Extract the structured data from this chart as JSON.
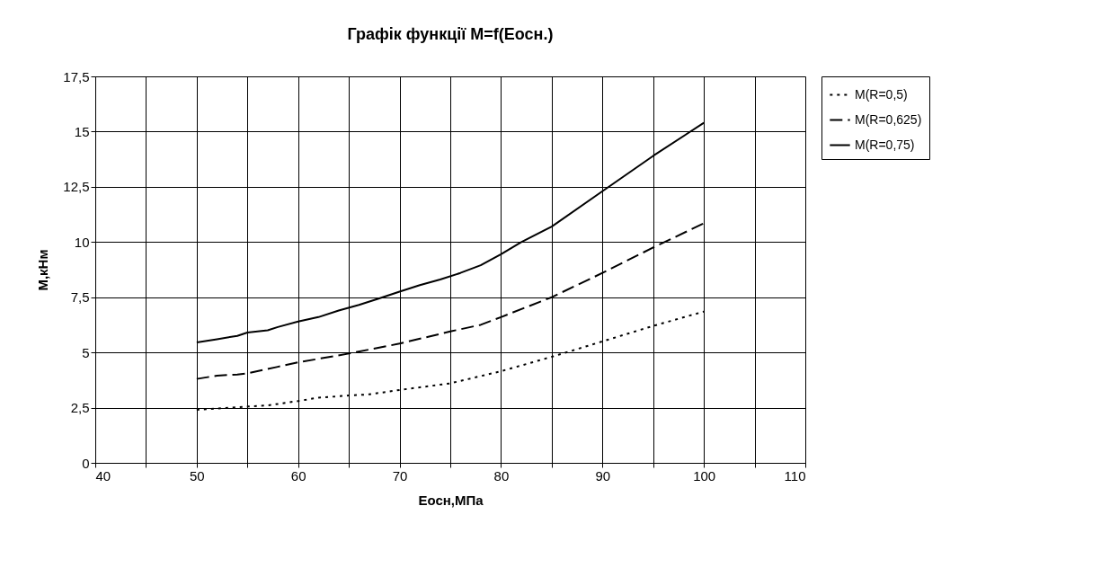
{
  "chart_data": {
    "type": "line",
    "title": "Графік функції M=f(Eосн.)",
    "xlabel": "Eосн,МПа",
    "ylabel": "M,кНм",
    "xlim": [
      40,
      110
    ],
    "xticks": [
      40,
      {
        "value": 45,
        "label": null
      },
      50,
      {
        "value": 55,
        "label": null
      },
      60,
      {
        "value": 65,
        "label": null
      },
      70,
      {
        "value": 75,
        "label": null
      },
      80,
      {
        "value": 85,
        "label": null
      },
      90,
      {
        "value": 95,
        "label": null
      },
      100,
      {
        "value": 105,
        "label": null
      },
      110
    ],
    "ylim": [
      0,
      17.5
    ],
    "yticks": [
      0,
      {
        "value": 2.5,
        "label": "2,5"
      },
      5,
      {
        "value": 7.5,
        "label": "7,5"
      },
      10,
      {
        "value": 12.5,
        "label": "12,5"
      },
      15,
      {
        "value": 17.5,
        "label": "17,5"
      }
    ],
    "grid": true,
    "legend": "right",
    "marker": "none",
    "series": [
      {
        "name": "M(R=0,5)",
        "color": "#000000",
        "line_style": "dotted",
        "x": [
          50,
          55,
          57,
          60,
          62,
          65,
          67,
          70,
          75,
          80,
          85,
          90,
          95,
          100
        ],
        "values": [
          2.4,
          2.55,
          2.6,
          2.8,
          2.95,
          3.05,
          3.1,
          3.3,
          3.6,
          4.15,
          4.8,
          5.5,
          6.2,
          6.85
        ]
      },
      {
        "name": "M(R=0,625)",
        "color": "#000000",
        "line_style": "dashed",
        "x": [
          50,
          52,
          54,
          55,
          58,
          60,
          65,
          70,
          75,
          78,
          80,
          85,
          90,
          95,
          100
        ],
        "values": [
          3.8,
          3.95,
          4.0,
          4.05,
          4.35,
          4.55,
          4.95,
          5.4,
          5.95,
          6.25,
          6.6,
          7.5,
          8.6,
          9.75,
          10.85
        ]
      },
      {
        "name": "M(R=0,75)",
        "color": "#000000",
        "line_style": "solid",
        "x": [
          50,
          52,
          54,
          55,
          56,
          57,
          58,
          60,
          62,
          64,
          66,
          68,
          70,
          72,
          74,
          76,
          78,
          80,
          82,
          85,
          90,
          95,
          100
        ],
        "values": [
          5.45,
          5.6,
          5.75,
          5.9,
          5.95,
          6.0,
          6.15,
          6.4,
          6.6,
          6.9,
          7.15,
          7.45,
          7.75,
          8.05,
          8.3,
          8.6,
          8.95,
          9.45,
          10.0,
          10.7,
          12.3,
          13.9,
          15.4
        ]
      }
    ]
  }
}
